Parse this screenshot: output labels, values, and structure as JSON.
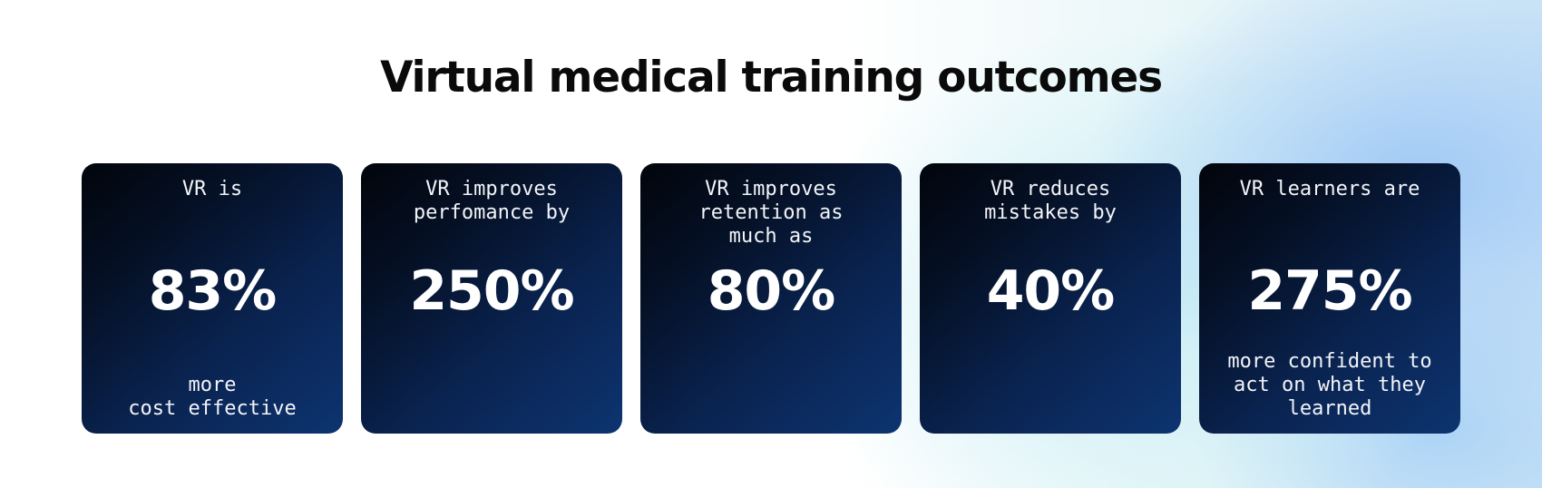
{
  "title": "Virtual medical training outcomes",
  "cards": [
    {
      "top": "VR is",
      "value": "83%",
      "bottom": "more\ncost effective"
    },
    {
      "top": "VR improves\nperfomance by",
      "value": "250%",
      "bottom": ""
    },
    {
      "top": "VR improves\nretention as\nmuch as",
      "value": "80%",
      "bottom": ""
    },
    {
      "top": "VR reduces\nmistakes by",
      "value": "40%",
      "bottom": ""
    },
    {
      "top": "VR learners are",
      "value": "275%",
      "bottom": "more confident to\nact on what they\nlearned"
    }
  ],
  "colors": {
    "card_dark": "#02050b",
    "card_light": "#0d3470",
    "title": "#0a0a0a",
    "text": "#ffffff"
  }
}
